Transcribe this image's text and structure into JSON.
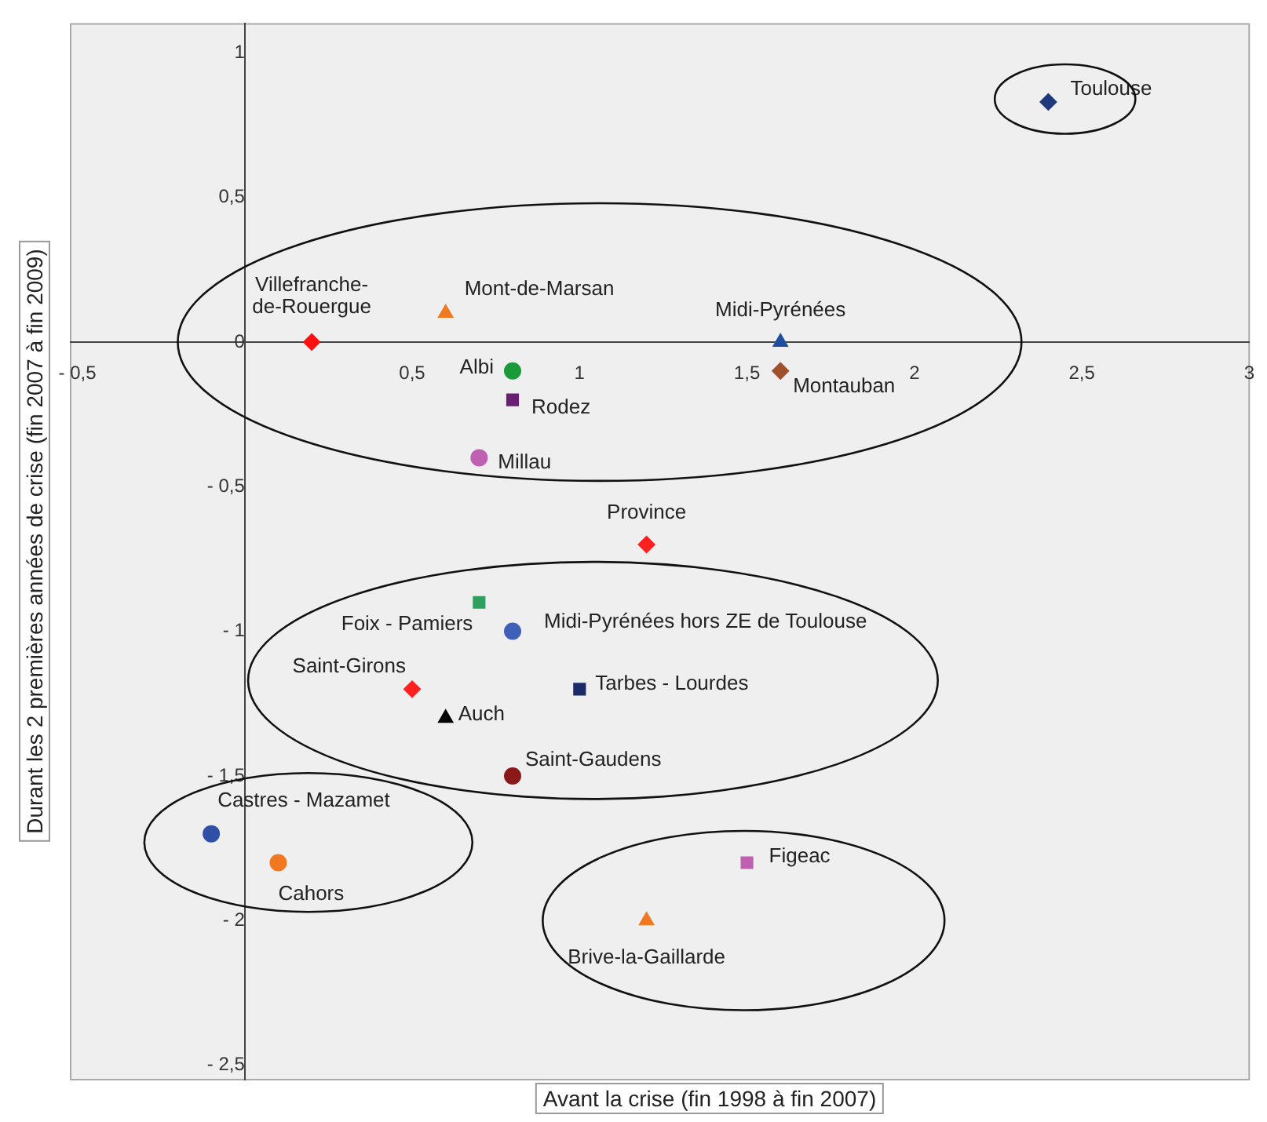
{
  "chart_data": {
    "type": "scatter",
    "xlabel": "Avant la crise (fin 1998 à fin 2007)",
    "ylabel": "Durant les 2 premières années de crise (fin 2007 à fin 2009)",
    "xlim": [
      -0.52,
      3
    ],
    "ylim": [
      -2.55,
      1.1
    ],
    "xticks": [
      {
        "value": -0.5,
        "label": "- 0,5"
      },
      {
        "value": 0.5,
        "label": "0,5"
      },
      {
        "value": 1,
        "label": "1"
      },
      {
        "value": 1.5,
        "label": "1,5"
      },
      {
        "value": 2,
        "label": "2"
      },
      {
        "value": 2.5,
        "label": "2,5"
      },
      {
        "value": 3,
        "label": "3"
      }
    ],
    "yticks": [
      {
        "value": 1,
        "label": "1"
      },
      {
        "value": 0.5,
        "label": "0,5"
      },
      {
        "value": 0,
        "label": "0"
      },
      {
        "value": -0.5,
        "label": "- 0,5"
      },
      {
        "value": -1,
        "label": "- 1"
      },
      {
        "value": -1.5,
        "label": "- 1,5"
      },
      {
        "value": -2,
        "label": "- 2"
      },
      {
        "value": -2.5,
        "label": "- 2,5"
      }
    ],
    "grid": false,
    "legend": false,
    "series": [
      {
        "name": "Toulouse",
        "color": "#1f3a7a",
        "marker": "diamond",
        "x": [
          2.4
        ],
        "values": [
          0.83
        ]
      },
      {
        "name": "Villefranche-de-Rouergue",
        "color": "#ff1010",
        "marker": "diamond",
        "x": [
          0.2
        ],
        "values": [
          0
        ]
      },
      {
        "name": "Mont-de-Marsan",
        "color": "#f07820",
        "marker": "triangle",
        "x": [
          0.6
        ],
        "values": [
          0.1
        ]
      },
      {
        "name": "Albi",
        "color": "#1a9a3a",
        "marker": "circle",
        "x": [
          0.8
        ],
        "values": [
          -0.1
        ]
      },
      {
        "name": "Rodez",
        "color": "#6a2070",
        "marker": "square",
        "x": [
          0.8
        ],
        "values": [
          -0.2
        ]
      },
      {
        "name": "Millau",
        "color": "#c060b0",
        "marker": "circle",
        "x": [
          0.7
        ],
        "values": [
          -0.4
        ]
      },
      {
        "name": "Midi-Pyrénées",
        "color": "#1f4fa0",
        "marker": "triangle",
        "x": [
          1.6
        ],
        "values": [
          0
        ]
      },
      {
        "name": "Montauban",
        "color": "#a0502a",
        "marker": "diamond",
        "x": [
          1.6
        ],
        "values": [
          -0.1
        ]
      },
      {
        "name": "Province",
        "color": "#ff2020",
        "marker": "diamond",
        "x": [
          1.2
        ],
        "values": [
          -0.7
        ]
      },
      {
        "name": "Foix - Pamiers",
        "color": "#30a060",
        "marker": "square",
        "x": [
          0.7
        ],
        "values": [
          -0.9
        ]
      },
      {
        "name": "Midi-Pyrénées hors ZE de Toulouse",
        "color": "#4060b8",
        "marker": "circle",
        "x": [
          0.8
        ],
        "values": [
          -1
        ]
      },
      {
        "name": "Tarbes - Lourdes",
        "color": "#1a2a6a",
        "marker": "square",
        "x": [
          1
        ],
        "values": [
          -1.2
        ]
      },
      {
        "name": "Saint-Girons",
        "color": "#ff2020",
        "marker": "diamond",
        "x": [
          0.5
        ],
        "values": [
          -1.2
        ]
      },
      {
        "name": "Auch",
        "color": "#000000",
        "marker": "triangle",
        "x": [
          0.6
        ],
        "values": [
          -1.3
        ]
      },
      {
        "name": "Saint-Gaudens",
        "color": "#8a1a1a",
        "marker": "circle",
        "x": [
          0.8
        ],
        "values": [
          -1.5
        ]
      },
      {
        "name": "Castres - Mazamet",
        "color": "#3050a8",
        "marker": "circle",
        "x": [
          -0.1
        ],
        "values": [
          -1.7
        ]
      },
      {
        "name": "Cahors",
        "color": "#f07820",
        "marker": "circle",
        "x": [
          0.1
        ],
        "values": [
          -1.8
        ]
      },
      {
        "name": "Figeac",
        "color": "#c060b0",
        "marker": "square",
        "x": [
          1.5
        ],
        "values": [
          -1.8
        ]
      },
      {
        "name": "Brive-la-Gaillarde",
        "color": "#f07820",
        "marker": "triangle",
        "x": [
          1.2
        ],
        "values": [
          -2
        ]
      }
    ]
  }
}
